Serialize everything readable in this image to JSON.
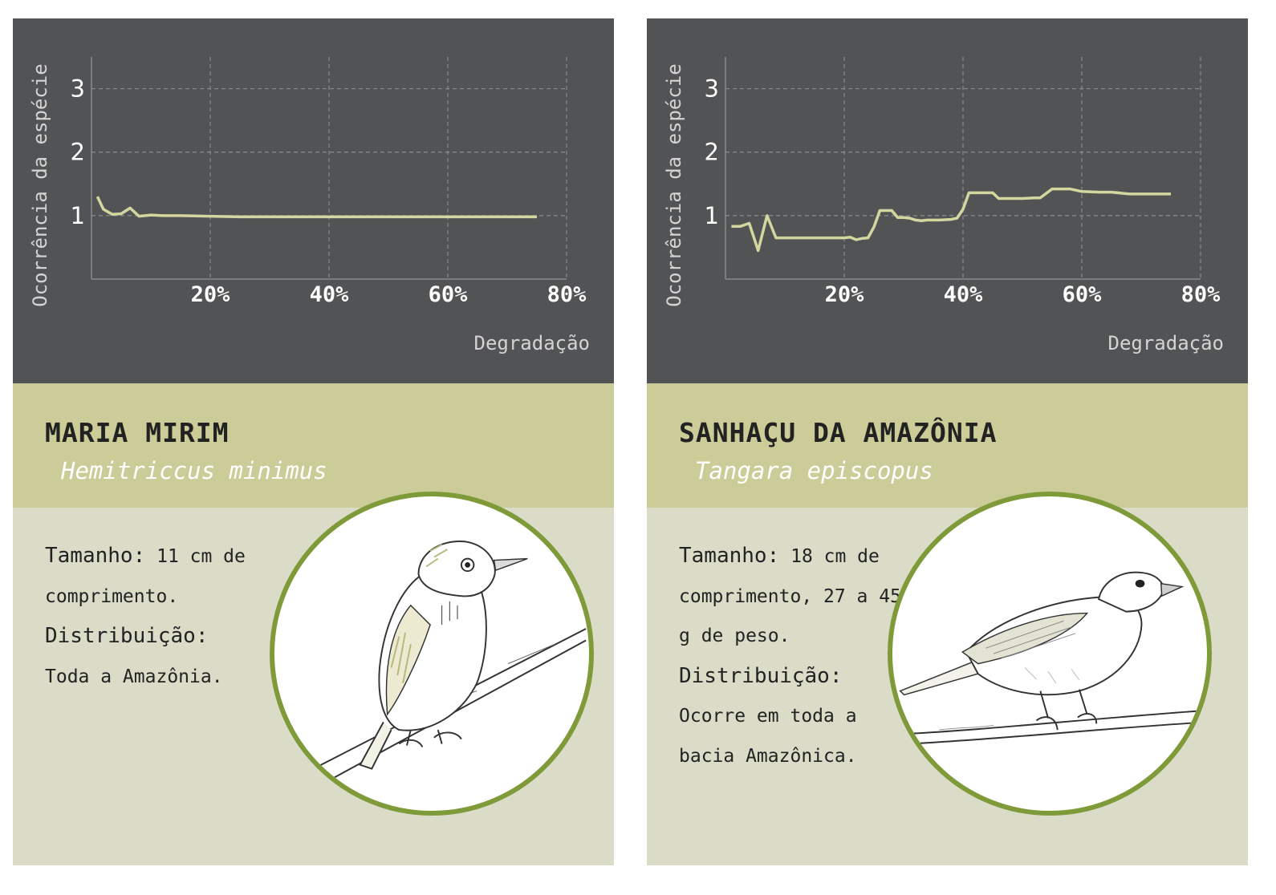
{
  "colors": {
    "chart_bg": "#525355",
    "line": "#d4d6a0",
    "name_band": "#cccc99",
    "info_band": "#dbdcc8",
    "circle_border": "#7f9a39"
  },
  "cards": [
    {
      "common_name": "MARIA MIRIM",
      "scientific_name": "Hemitriccus minimus",
      "size_label": "Tamanho:",
      "size_text": "11 cm de comprimento.",
      "distribution_label": "Distribuição:",
      "distribution_text": "Toda a Amazônia.",
      "illustration_icon": "perched-small-bird-icon"
    },
    {
      "common_name": "SANHAÇU DA AMAZÔNIA",
      "scientific_name": "Tangara episcopus",
      "size_label": "Tamanho:",
      "size_text": "18 cm de comprimento, 27 a 45 g de peso.",
      "distribution_label": "Distribuição:",
      "distribution_text": "Ocorre em toda a bacia Amazônica.",
      "illustration_icon": "perched-tanager-icon"
    }
  ],
  "chart_data": [
    {
      "type": "line",
      "xlabel": "Degradação",
      "ylabel": "Ocorrência da espécie",
      "x_ticks": [
        "20%",
        "40%",
        "60%",
        "80%"
      ],
      "y_ticks": [
        "1",
        "2",
        "3"
      ],
      "xlim": [
        0,
        80
      ],
      "ylim": [
        0,
        3.5
      ],
      "grid": true,
      "series": [
        {
          "x": [
            1,
            2,
            3.5,
            5,
            6.5,
            8,
            10,
            12,
            15,
            20,
            25,
            30,
            40,
            50,
            60,
            70,
            75
          ],
          "values": [
            1.3,
            1.1,
            1.02,
            1.03,
            1.12,
            0.99,
            1.01,
            1.0,
            1.0,
            0.99,
            0.98,
            0.98,
            0.98,
            0.98,
            0.98,
            0.98,
            0.98
          ]
        }
      ]
    },
    {
      "type": "line",
      "xlabel": "Degradação",
      "ylabel": "Ocorrência da espécie",
      "x_ticks": [
        "20%",
        "40%",
        "60%",
        "80%"
      ],
      "y_ticks": [
        "1",
        "2",
        "3"
      ],
      "xlim": [
        0,
        80
      ],
      "ylim": [
        0,
        3.5
      ],
      "grid": true,
      "series": [
        {
          "x": [
            1,
            2.5,
            4,
            5.5,
            7,
            8.5,
            12,
            16,
            20,
            21,
            22,
            23,
            24,
            25,
            26,
            27,
            28,
            29,
            30,
            31,
            32,
            33,
            34,
            36,
            38,
            39,
            40,
            41,
            43,
            45,
            46,
            48,
            50,
            52,
            53,
            55,
            57,
            58,
            60,
            63,
            65,
            68,
            72,
            75
          ],
          "values": [
            0.83,
            0.83,
            0.88,
            0.45,
            1.0,
            0.65,
            0.65,
            0.65,
            0.65,
            0.66,
            0.62,
            0.64,
            0.65,
            0.82,
            1.08,
            1.08,
            1.08,
            0.97,
            0.97,
            0.96,
            0.93,
            0.92,
            0.93,
            0.93,
            0.94,
            0.96,
            1.1,
            1.36,
            1.36,
            1.36,
            1.27,
            1.27,
            1.27,
            1.28,
            1.28,
            1.42,
            1.42,
            1.42,
            1.38,
            1.37,
            1.37,
            1.34,
            1.34,
            1.34
          ]
        }
      ]
    }
  ]
}
